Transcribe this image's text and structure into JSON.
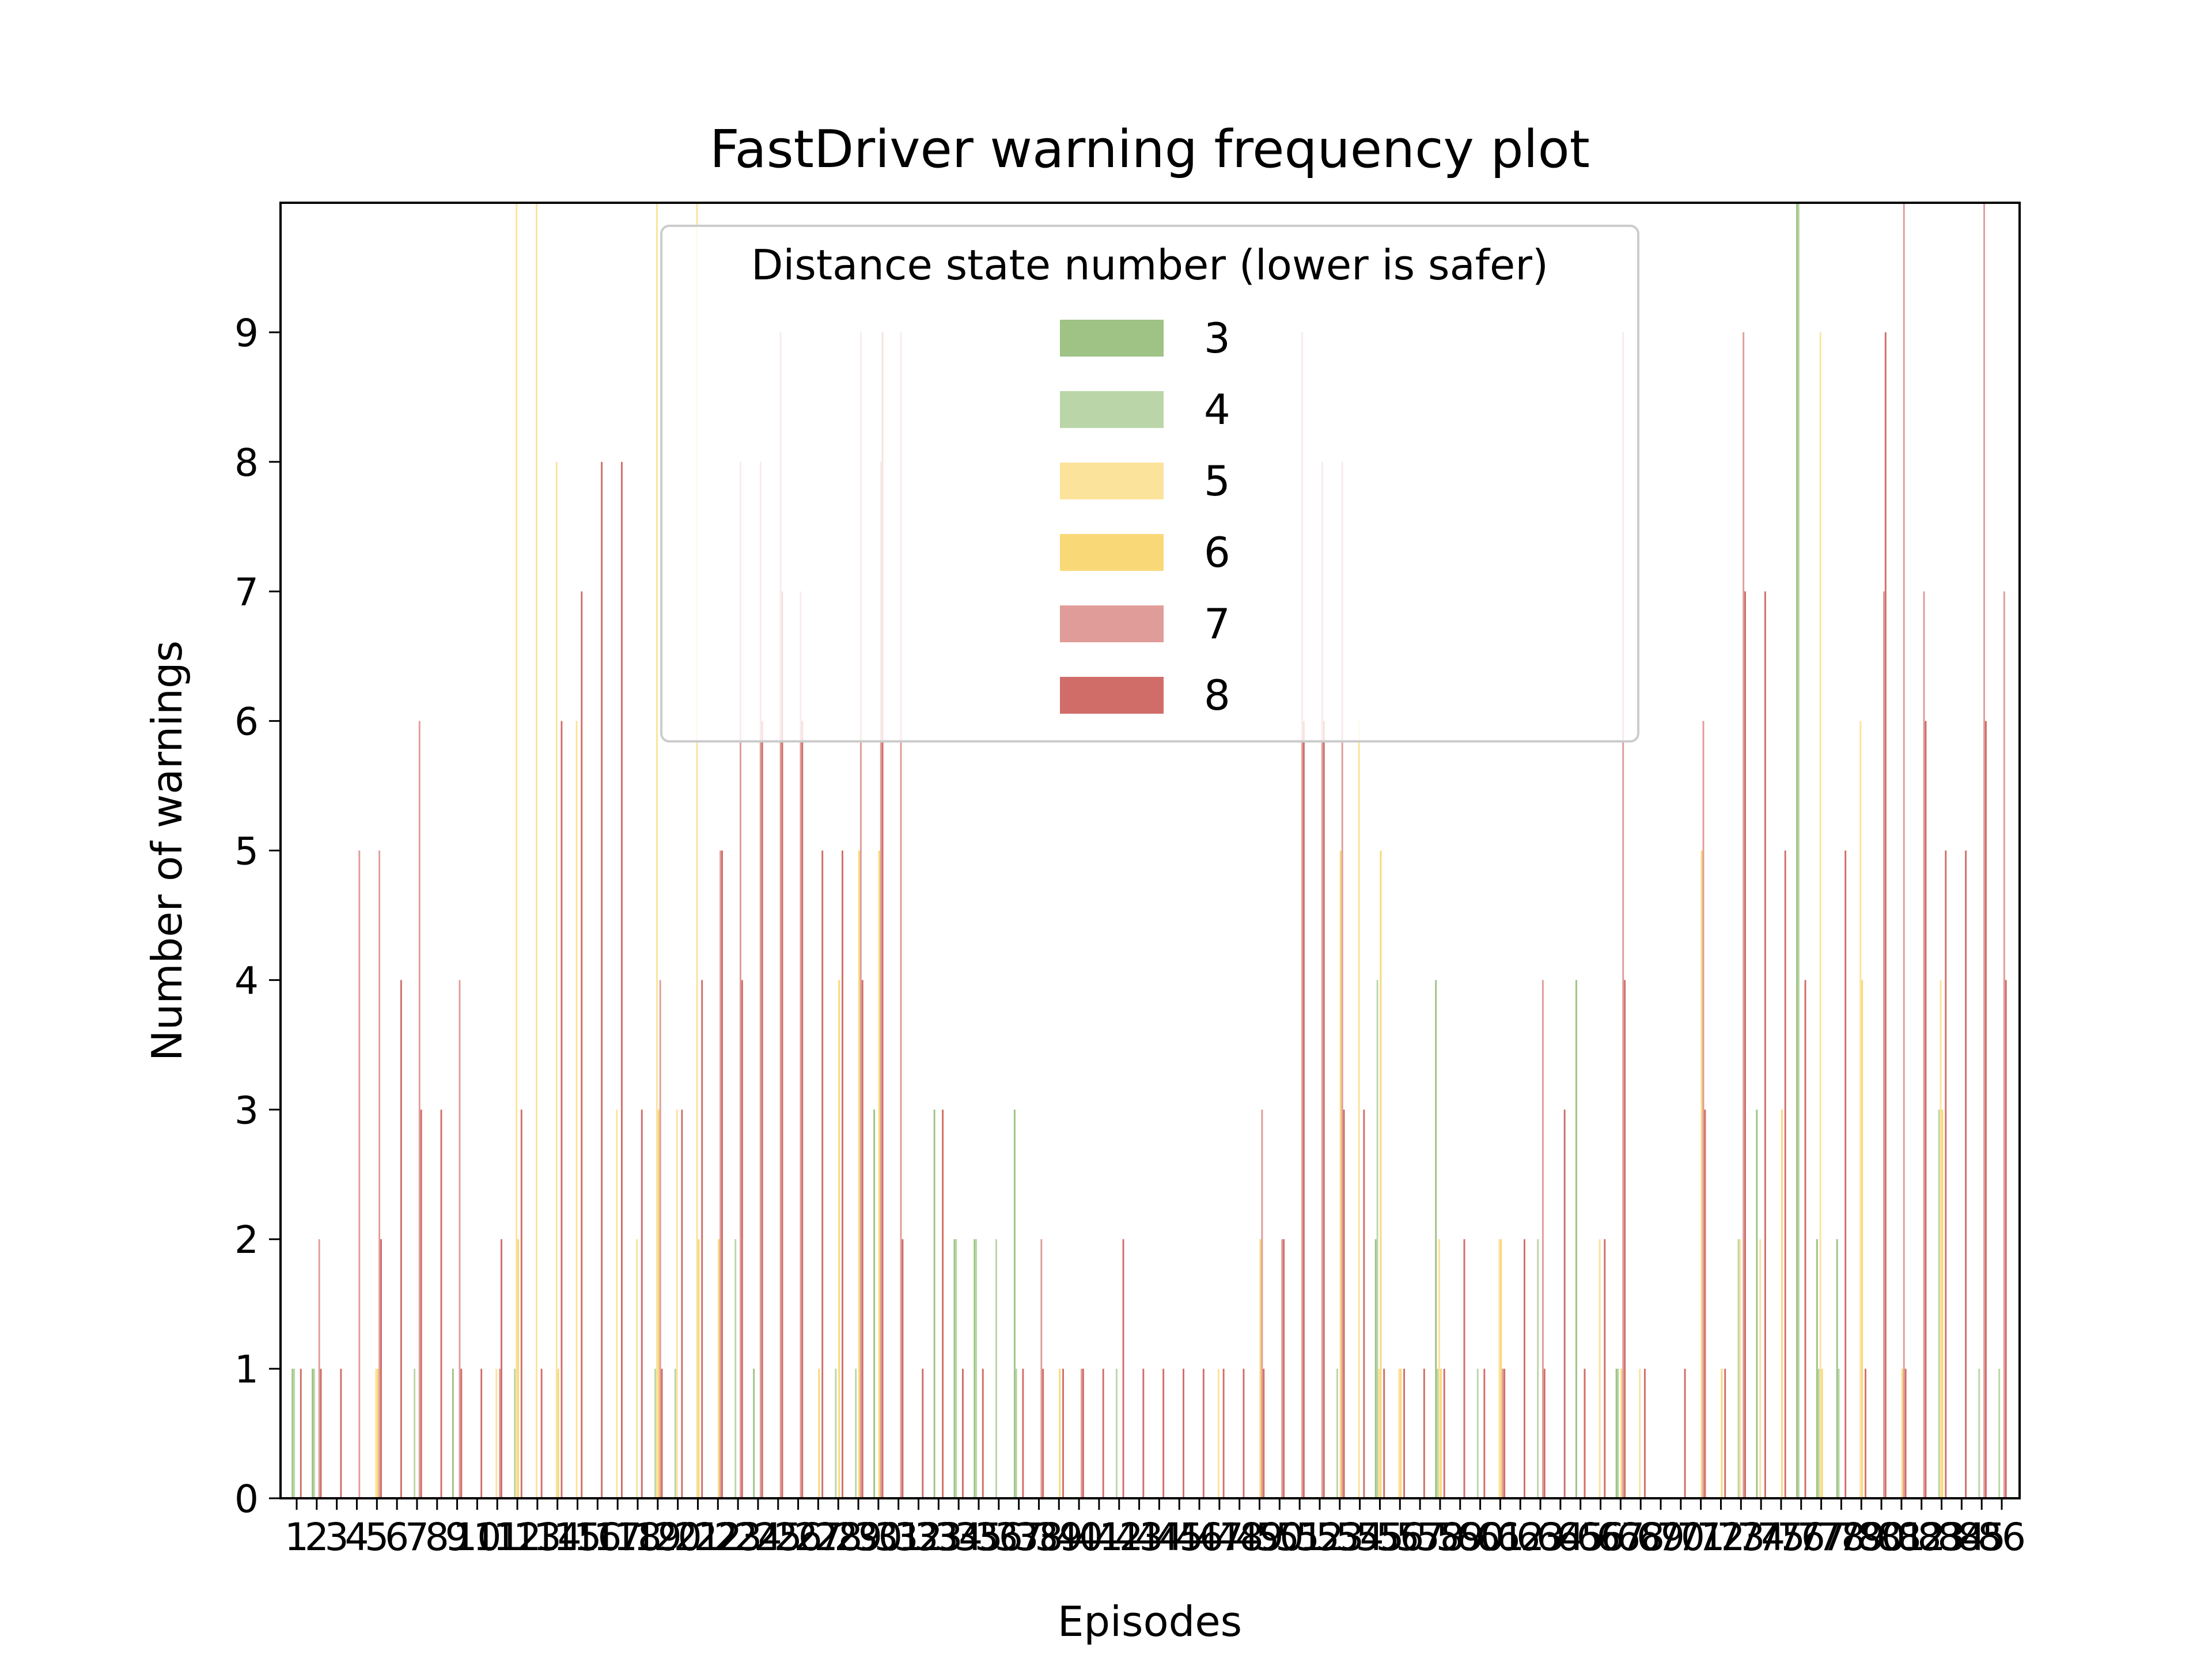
{
  "chart_data": {
    "type": "bar",
    "title": "FastDriver warning frequency plot",
    "xlabel": "Episodes",
    "ylabel": "Number of warnings",
    "ylim": [
      0,
      10
    ],
    "yticks": [
      0,
      1,
      2,
      3,
      4,
      5,
      6,
      7,
      8,
      9
    ],
    "categories": [
      "1",
      "2",
      "3",
      "4",
      "5",
      "6",
      "7",
      "8",
      "9",
      "10",
      "11",
      "12",
      "13",
      "14",
      "15",
      "16",
      "17",
      "18",
      "19",
      "20",
      "21",
      "22",
      "23",
      "24",
      "25",
      "26",
      "27",
      "28",
      "29",
      "30",
      "31",
      "32",
      "33",
      "34",
      "35",
      "36",
      "37",
      "38",
      "39",
      "40",
      "41",
      "42",
      "43",
      "44",
      "45",
      "46",
      "47",
      "48",
      "49",
      "50",
      "51",
      "52",
      "53",
      "54",
      "55",
      "56",
      "57",
      "58",
      "59",
      "60",
      "61",
      "62",
      "63",
      "64",
      "65",
      "66",
      "67",
      "68",
      "69",
      "70",
      "71",
      "72",
      "73",
      "74",
      "75",
      "76",
      "77",
      "78",
      "79",
      "80",
      "81",
      "82",
      "83",
      "84",
      "85",
      "86"
    ],
    "legend": {
      "title": "Distance state number (lower is safer)",
      "placement": "upper-center"
    },
    "grid": false,
    "series": [
      {
        "name": "3",
        "color": "#9ec384",
        "values": [
          1,
          1,
          0,
          0,
          0,
          0,
          0,
          0,
          1,
          0,
          0,
          0,
          0,
          0,
          0,
          0,
          0,
          0,
          0,
          0,
          0,
          0,
          0,
          1,
          0,
          0,
          0,
          0,
          0,
          3,
          0,
          0,
          3,
          2,
          2,
          0,
          3,
          0,
          0,
          0,
          0,
          0,
          0,
          0,
          0,
          0,
          0,
          0,
          0,
          0,
          0,
          0,
          0,
          0,
          2,
          0,
          0,
          4,
          0,
          0,
          0,
          0,
          0,
          0,
          4,
          0,
          1,
          0,
          0,
          0,
          0,
          0,
          0,
          3,
          0,
          10,
          2,
          2,
          0,
          0,
          0,
          0,
          0,
          0,
          0,
          0
        ]
      },
      {
        "name": "4",
        "color": "#bad6a8",
        "values": [
          1,
          1,
          0,
          0,
          0,
          0,
          1,
          0,
          0,
          0,
          0,
          1,
          0,
          0,
          0,
          0,
          0,
          0,
          1,
          1,
          0,
          0,
          2,
          0,
          0,
          0,
          0,
          1,
          1,
          0,
          0,
          0,
          0,
          2,
          2,
          2,
          1,
          0,
          0,
          0,
          0,
          1,
          0,
          0,
          0,
          0,
          0,
          0,
          0,
          0,
          0,
          0,
          1,
          0,
          4,
          0,
          0,
          1,
          0,
          1,
          0,
          0,
          2,
          0,
          0,
          0,
          1,
          0,
          0,
          0,
          0,
          0,
          2,
          0,
          0,
          10,
          1,
          1,
          0,
          0,
          0,
          0,
          3,
          0,
          1,
          1
        ]
      },
      {
        "name": "5",
        "color": "#fbe39c",
        "values": [
          0,
          0,
          0,
          0,
          1,
          0,
          0,
          0,
          0,
          0,
          1,
          10,
          10,
          8,
          6,
          0,
          3,
          2,
          10,
          3,
          10,
          0,
          0,
          0,
          0,
          0,
          0,
          0,
          0,
          0,
          0,
          0,
          0,
          0,
          0,
          0,
          0,
          0,
          0,
          0,
          0,
          0,
          0,
          0,
          0,
          0,
          1,
          0,
          0,
          0,
          0,
          0,
          0,
          6,
          1,
          1,
          0,
          2,
          0,
          0,
          2,
          0,
          0,
          0,
          0,
          2,
          0,
          1,
          0,
          0,
          0,
          0,
          2,
          2,
          0,
          0,
          9,
          0,
          6,
          0,
          0,
          0,
          4,
          0,
          0,
          0
        ]
      },
      {
        "name": "6",
        "color": "#f9d878",
        "values": [
          0,
          0,
          0,
          0,
          1,
          0,
          0,
          0,
          0,
          0,
          0,
          2,
          0,
          1,
          0,
          0,
          0,
          0,
          3,
          0,
          2,
          2,
          0,
          0,
          0,
          0,
          1,
          4,
          5,
          5,
          0,
          0,
          0,
          0,
          0,
          0,
          0,
          0,
          1,
          0,
          0,
          0,
          0,
          0,
          0,
          0,
          0,
          0,
          2,
          0,
          0,
          0,
          5,
          0,
          5,
          1,
          0,
          1,
          0,
          0,
          2,
          0,
          0,
          0,
          0,
          0,
          1,
          0,
          0,
          0,
          5,
          1,
          0,
          0,
          3,
          0,
          1,
          0,
          4,
          0,
          1,
          0,
          3,
          0,
          0,
          0
        ]
      },
      {
        "name": "7",
        "color": "#e09c98",
        "values": [
          0,
          2,
          0,
          5,
          5,
          0,
          6,
          0,
          4,
          0,
          1,
          0,
          0,
          0,
          0,
          0,
          0,
          0,
          4,
          0,
          0,
          5,
          8,
          8,
          9,
          7,
          0,
          0,
          9,
          8,
          9,
          0,
          0,
          0,
          0,
          0,
          0,
          2,
          0,
          1,
          0,
          0,
          0,
          0,
          0,
          0,
          0,
          0,
          3,
          2,
          9,
          8,
          8,
          0,
          0,
          0,
          0,
          0,
          0,
          0,
          1,
          0,
          4,
          0,
          0,
          0,
          9,
          0,
          0,
          0,
          6,
          0,
          9,
          0,
          0,
          0,
          0,
          0,
          0,
          7,
          10,
          7,
          0,
          0,
          10,
          7
        ]
      },
      {
        "name": "8",
        "color": "#d16d69",
        "values": [
          1,
          1,
          1,
          0,
          2,
          4,
          3,
          3,
          1,
          1,
          2,
          3,
          1,
          6,
          7,
          8,
          8,
          3,
          1,
          3,
          4,
          5,
          4,
          6,
          7,
          6,
          5,
          5,
          4,
          9,
          2,
          1,
          3,
          1,
          1,
          0,
          1,
          1,
          1,
          1,
          1,
          2,
          1,
          1,
          1,
          1,
          1,
          1,
          1,
          2,
          6,
          6,
          3,
          3,
          1,
          1,
          1,
          1,
          2,
          1,
          1,
          2,
          1,
          3,
          1,
          2,
          4,
          1,
          0,
          1,
          3,
          1,
          7,
          7,
          5,
          4,
          0,
          5,
          1,
          9,
          1,
          6,
          5,
          5,
          6,
          4
        ]
      }
    ]
  }
}
